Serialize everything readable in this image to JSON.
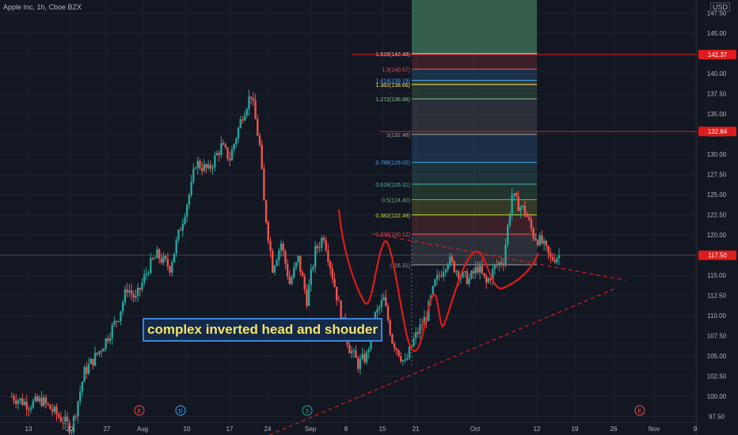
{
  "header": {
    "title": "Apple Inc, 1h, Cboe BZX",
    "currency": "USD"
  },
  "annotation": "complex inverted head and shouder",
  "colors": {
    "bg": "#131722",
    "up": "#26a69a",
    "down": "#ef5350",
    "pattern": "#e01b1b"
  },
  "chart_data": {
    "type": "candlestick",
    "yrange": [
      96,
      148
    ],
    "y_ticks": [
      "97.50",
      "100.00",
      "102.50",
      "105.00",
      "107.50",
      "110.00",
      "112.50",
      "115.00",
      "117.50",
      "120.00",
      "122.50",
      "125.00",
      "127.50",
      "130.00",
      "132.50",
      "135.00",
      "137.50",
      "140.00",
      "142.50",
      "145.00",
      "147.50"
    ],
    "x_ticks": [
      "13",
      "20",
      "27",
      "Aug",
      "10",
      "17",
      "24",
      "Sep",
      "8",
      "15",
      "21",
      "Oct",
      "12",
      "19",
      "26",
      "Nov",
      "9"
    ],
    "price_labels": [
      "142.37",
      "132.84",
      "117.50"
    ],
    "fib_levels": [
      {
        "label": "1.618(142.48)",
        "value": 142.48,
        "color": "#d8d8d8"
      },
      {
        "label": "1.5(140.57)",
        "value": 140.57,
        "color": "#ef5350"
      },
      {
        "label": "1.414(139.19)",
        "value": 139.19,
        "color": "#42a5f5"
      },
      {
        "label": "1.382(138.66)",
        "value": 138.66,
        "color": "#f7e26b"
      },
      {
        "label": "1.272(136.88)",
        "value": 136.88,
        "color": "#81c784"
      },
      {
        "label": "1(132.48)",
        "value": 132.48,
        "color": "#9e9e9e"
      },
      {
        "label": "0.786(129.02)",
        "value": 129.02,
        "color": "#42a5f5"
      },
      {
        "label": "0.618(126.31)",
        "value": 126.31,
        "color": "#4db6ac"
      },
      {
        "label": "0.5(124.40)",
        "value": 124.4,
        "color": "#66bb6a"
      },
      {
        "label": "0.382(122.49)",
        "value": 122.49,
        "color": "#cddc39"
      },
      {
        "label": "0.236(120.12)",
        "value": 120.12,
        "color": "#ef5350"
      },
      {
        "label": "(116.31)",
        "value": 116.31,
        "color": "#9e9e9e"
      }
    ],
    "event_markers": [
      "E",
      "D",
      "S",
      "E"
    ],
    "price_path": [
      [
        101,
        100
      ],
      [
        105,
        99
      ],
      [
        108,
        99.5
      ],
      [
        112,
        97.5
      ],
      [
        115,
        96
      ],
      [
        118,
        103
      ],
      [
        122,
        106
      ],
      [
        126,
        110
      ],
      [
        128,
        113.5
      ],
      [
        130,
        112
      ],
      [
        133,
        116
      ],
      [
        135,
        117.5
      ],
      [
        138,
        116
      ],
      [
        140,
        120
      ],
      [
        143,
        126
      ],
      [
        144,
        129
      ],
      [
        147,
        128
      ],
      [
        150,
        131
      ],
      [
        152,
        129.5
      ],
      [
        155,
        135
      ],
      [
        157,
        137.5
      ],
      [
        159,
        131
      ],
      [
        160,
        124
      ],
      [
        162,
        116
      ],
      [
        164,
        119
      ],
      [
        166,
        114
      ],
      [
        168,
        117
      ],
      [
        170,
        112
      ],
      [
        172,
        118
      ],
      [
        174,
        120
      ],
      [
        176,
        115
      ],
      [
        178,
        110
      ],
      [
        180,
        106
      ],
      [
        182,
        104
      ],
      [
        184,
        105
      ],
      [
        186,
        110
      ],
      [
        188,
        112
      ],
      [
        190,
        107
      ],
      [
        192,
        105
      ],
      [
        193,
        104
      ],
      [
        195,
        107
      ],
      [
        198,
        110
      ],
      [
        200,
        114
      ],
      [
        203,
        117
      ],
      [
        206,
        115
      ],
      [
        208,
        114.5
      ],
      [
        210,
        116
      ],
      [
        212,
        114
      ],
      [
        214,
        116
      ],
      [
        216,
        117
      ],
      [
        218,
        125
      ],
      [
        219,
        124
      ],
      [
        221,
        123
      ],
      [
        223,
        120
      ],
      [
        225,
        119
      ],
      [
        227,
        117
      ],
      [
        229,
        117.5
      ]
    ]
  }
}
